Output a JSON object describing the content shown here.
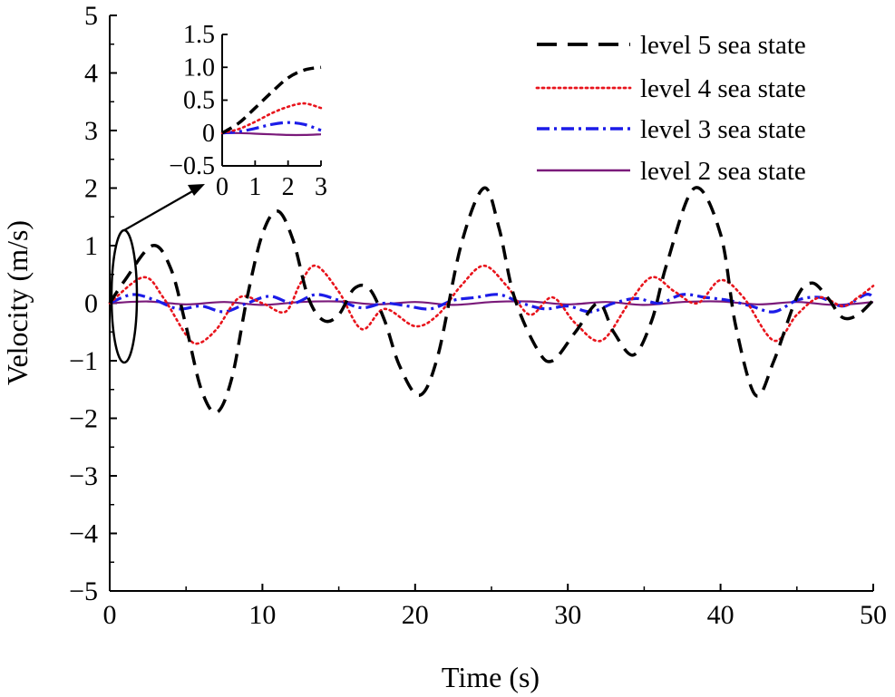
{
  "chart_data": {
    "type": "line",
    "xlabel": "Time (s)",
    "ylabel": "Velocity (m/s)",
    "xlim": [
      0,
      50
    ],
    "ylim": [
      -5,
      5
    ],
    "xticks": [
      "0",
      "10",
      "20",
      "30",
      "40",
      "50"
    ],
    "yticks": [
      "5",
      "4",
      "3",
      "2",
      "1",
      "0",
      "−1",
      "−2",
      "−3",
      "−4",
      "−5"
    ],
    "grid": false,
    "legend_position": "top-right",
    "series": [
      {
        "name": "level 5 sea state",
        "color": "#000000",
        "style": "dashed",
        "x": [
          0,
          1,
          2.8,
          4,
          5,
          6,
          7,
          8,
          9,
          10,
          11,
          12,
          13,
          14,
          15,
          16,
          17,
          18,
          19,
          20.3,
          21.5,
          23,
          24.5,
          25.5,
          26.5,
          28,
          29,
          30.5,
          32,
          33,
          34.3,
          35.5,
          36.5,
          38.3,
          40,
          41,
          42.3,
          43.5,
          45,
          46,
          47,
          48,
          49,
          50
        ],
        "y": [
          0,
          0.4,
          1.0,
          0.6,
          -0.4,
          -1.5,
          -1.9,
          -1.3,
          0.1,
          1.2,
          1.6,
          1.1,
          0.1,
          -0.3,
          -0.2,
          0.25,
          0.25,
          -0.3,
          -1.1,
          -1.6,
          -0.9,
          1.0,
          2.0,
          1.3,
          0.1,
          -0.8,
          -1.0,
          -0.5,
          0.0,
          -0.5,
          -0.9,
          -0.3,
          0.7,
          2.0,
          1.2,
          -0.4,
          -1.6,
          -1.0,
          0.1,
          0.35,
          0.1,
          -0.25,
          -0.2,
          0.05
        ]
      },
      {
        "name": "level 4 sea state",
        "color": "#e8141c",
        "style": "dotted",
        "x": [
          0,
          2.2,
          3.5,
          5,
          5.8,
          7,
          8.5,
          10,
          11.5,
          12.5,
          13.5,
          15,
          16.5,
          18,
          20,
          21.5,
          23,
          24.5,
          26,
          27.5,
          29,
          30.5,
          32.2,
          34,
          35.5,
          37,
          38.5,
          40,
          41.5,
          43.5,
          45,
          46.5,
          48,
          49,
          50
        ],
        "y": [
          0,
          0.45,
          0.1,
          -0.55,
          -0.7,
          -0.45,
          0.1,
          0.0,
          -0.15,
          0.35,
          0.65,
          0.2,
          -0.45,
          -0.1,
          -0.4,
          -0.2,
          0.3,
          0.65,
          0.3,
          -0.2,
          0.1,
          -0.35,
          -0.65,
          0.0,
          0.45,
          0.2,
          0.0,
          0.4,
          0.1,
          -0.65,
          -0.2,
          0.1,
          -0.05,
          0.1,
          0.3
        ]
      },
      {
        "name": "level 3 sea state",
        "color": "#1c1ce8",
        "style": "dashdot",
        "x": [
          0,
          1.5,
          3,
          4.5,
          6,
          7.5,
          9,
          10.5,
          12,
          13.5,
          15,
          16.5,
          18,
          19.5,
          21,
          22.5,
          24,
          25.5,
          27,
          28.5,
          30,
          31.5,
          33,
          34.5,
          36,
          37.5,
          39,
          40.5,
          42,
          43.5,
          45,
          46.5,
          48,
          49.5,
          50
        ],
        "y": [
          0,
          0.15,
          0.05,
          -0.1,
          -0.05,
          -0.15,
          0.0,
          0.12,
          0.0,
          0.15,
          0.05,
          -0.08,
          0.0,
          -0.05,
          -0.1,
          0.05,
          0.1,
          0.15,
          0.0,
          -0.1,
          -0.05,
          -0.15,
          0.0,
          0.08,
          0.0,
          0.15,
          0.1,
          0.05,
          -0.05,
          -0.15,
          0.05,
          0.1,
          -0.05,
          0.15,
          0.1
        ]
      },
      {
        "name": "level 2 sea state",
        "color": "#7a1a7a",
        "style": "solid",
        "x": [
          0,
          2.5,
          5,
          7.5,
          10,
          12.5,
          15,
          17.5,
          20,
          22.5,
          25,
          27.5,
          30,
          32.5,
          35,
          37.5,
          40,
          42.5,
          45,
          47.5,
          50
        ],
        "y": [
          0,
          0.03,
          -0.02,
          0.02,
          -0.03,
          0.02,
          0.03,
          -0.02,
          0.02,
          -0.03,
          0.02,
          0.03,
          -0.02,
          0.02,
          -0.03,
          0.02,
          0.03,
          -0.02,
          0.02,
          -0.03,
          0.02
        ]
      }
    ],
    "annotation": "ellipse around t = 0–2 s with arrow to zoomed inset",
    "inset": {
      "xlim": [
        0,
        3
      ],
      "ylim": [
        -0.5,
        1.5
      ],
      "xticks": [
        "0",
        "1",
        "2",
        "3"
      ],
      "yticks": [
        "1.5",
        "1.0",
        "0.5",
        "0",
        "−0.5"
      ],
      "series": [
        {
          "name": "level 5 sea state",
          "x": [
            0,
            0.5,
            1,
            1.5,
            2,
            2.5,
            3
          ],
          "y": [
            0,
            0.15,
            0.38,
            0.62,
            0.84,
            0.96,
            1.0
          ]
        },
        {
          "name": "level 4 sea state",
          "x": [
            0,
            0.5,
            1,
            1.5,
            2,
            2.5,
            3
          ],
          "y": [
            0,
            0.06,
            0.17,
            0.3,
            0.4,
            0.45,
            0.38
          ]
        },
        {
          "name": "level 3 sea state",
          "x": [
            0,
            0.5,
            1,
            1.5,
            2,
            2.5,
            3
          ],
          "y": [
            0,
            0.02,
            0.07,
            0.13,
            0.16,
            0.13,
            0.04
          ]
        },
        {
          "name": "level 2 sea state",
          "x": [
            0,
            0.5,
            1,
            1.5,
            2,
            2.5,
            3
          ],
          "y": [
            0,
            0.0,
            -0.01,
            -0.02,
            -0.03,
            -0.03,
            -0.02
          ]
        }
      ]
    }
  }
}
